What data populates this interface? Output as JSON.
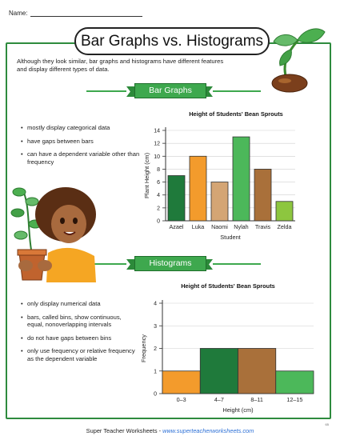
{
  "header": {
    "name_label": "Name:",
    "title": "Bar Graphs vs. Histograms"
  },
  "intro": "Although they look similar, bar graphs and histograms have different features and display different types of data.",
  "bar_section": {
    "ribbon": "Bar Graphs",
    "bullets": [
      "mostly display categorical data",
      "have gaps between bars",
      "can have a dependent variable other than frequency"
    ]
  },
  "hist_section": {
    "ribbon": "Histograms",
    "bullets": [
      "only display numerical data",
      "bars, called bins, show continuous, equal, nonoverlapping intervals",
      "do not have gaps between bins",
      "only use frequency or relative frequency as the dependent variable"
    ]
  },
  "footer": {
    "text": "Super Teacher Worksheets - ",
    "url": "www.superteacherworksheets.com",
    "page_num": "65"
  },
  "chart_data": [
    {
      "type": "bar",
      "title": "Height of Students' Bean Sprouts",
      "xlabel": "Student",
      "ylabel": "Plant Height (cm)",
      "categories": [
        "Azael",
        "Luka",
        "Naomi",
        "Nylah",
        "Travis",
        "Zelda"
      ],
      "values": [
        7,
        10,
        6,
        13,
        8,
        3
      ],
      "colors": [
        "#1f7a3b",
        "#f39b2c",
        "#d4a574",
        "#4cb85a",
        "#a9703a",
        "#8dc63f"
      ],
      "ylim": [
        0,
        14
      ],
      "yticks": [
        0,
        2,
        4,
        6,
        8,
        10,
        12,
        14
      ],
      "grid": true
    },
    {
      "type": "bar",
      "title": "Height of Students' Bean Sprouts",
      "xlabel": "Height (cm)",
      "ylabel": "Frequency",
      "categories": [
        "0–3",
        "4–7",
        "8–11",
        "12–15"
      ],
      "values": [
        1,
        2,
        2,
        1
      ],
      "colors": [
        "#f39b2c",
        "#1f7a3b",
        "#a9703a",
        "#4cb85a"
      ],
      "ylim": [
        0,
        4
      ],
      "yticks": [
        0,
        1,
        2,
        3,
        4
      ],
      "grid": true
    }
  ]
}
